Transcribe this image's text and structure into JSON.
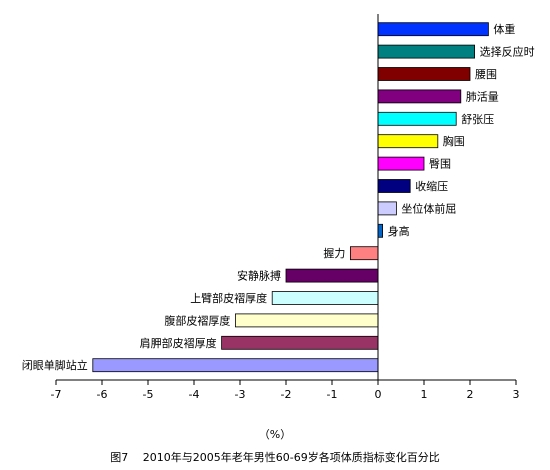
{
  "chart_data": {
    "type": "bar",
    "orientation": "horizontal",
    "title": "",
    "xlabel": "（%）",
    "ylabel": "",
    "xlim": [
      -7,
      3
    ],
    "xticks": [
      "-7",
      "-6",
      "-5",
      "-4",
      "-3",
      "-2",
      "-1",
      "0",
      "1",
      "2",
      "3"
    ],
    "grid": false,
    "categories": [
      "体重",
      "选择反应时",
      "腰围",
      "肺活量",
      "舒张压",
      "胸围",
      "臀围",
      "收缩压",
      "坐位体前屈",
      "身高",
      "握力",
      "安静脉搏",
      "上臂部皮褶厚度",
      "腹部皮褶厚度",
      "肩胛部皮褶厚度",
      "闭眼单脚站立"
    ],
    "values": [
      2.4,
      2.1,
      2.0,
      1.8,
      1.7,
      1.3,
      1.0,
      0.7,
      0.4,
      0.1,
      -0.6,
      -2.0,
      -2.3,
      -3.1,
      -3.4,
      -6.2
    ],
    "colors": [
      "#0033ff",
      "#008080",
      "#800000",
      "#800080",
      "#00ffff",
      "#ffff00",
      "#ff00ff",
      "#000080",
      "#ccccff",
      "#0066cc",
      "#ff8080",
      "#660066",
      "#ccffff",
      "#ffffcc",
      "#993366",
      "#9999ff"
    ]
  },
  "caption": "图7　 2010年与2005年老年男性60-69岁各项体质指标变化百分比"
}
